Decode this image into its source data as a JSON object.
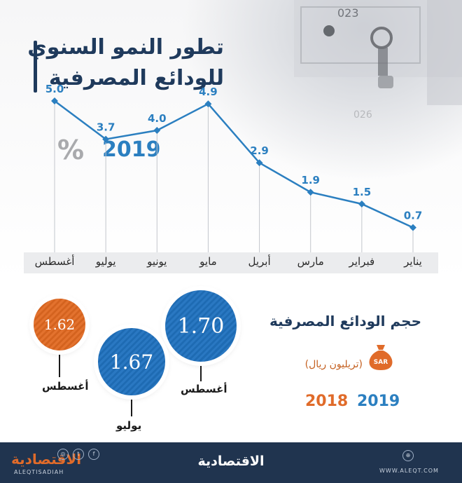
{
  "title_line1": "تطور النمو السنوي",
  "title_line2": "للودائع المصرفية",
  "percent_sign": "%",
  "year": "2019",
  "chart_data": {
    "type": "line",
    "x": [
      "يناير",
      "فبراير",
      "مارس",
      "أبريل",
      "مايو",
      "يونيو",
      "يوليو",
      "أغسطس"
    ],
    "series": [
      {
        "values": [
          0.7,
          1.5,
          1.9,
          2.9,
          4.9,
          4.0,
          3.7,
          5.0
        ]
      }
    ],
    "data_labels": [
      "0.7",
      "1.5",
      "1.9",
      "2.9",
      "4.9",
      "4.0",
      "3.7",
      "5.0"
    ],
    "ylim": [
      0,
      5.0
    ],
    "grid": false,
    "legend": "none"
  },
  "deposits": {
    "title": "حجم الودائع المصرفية",
    "unit": "(تريليون ريال)",
    "currency_icon": "money-bag-icon",
    "currency_text": "SAR",
    "legend_2019": "2019",
    "legend_2018": "2018",
    "bubbles": [
      {
        "value": "1.70",
        "label": "أغسطس",
        "year": "2019"
      },
      {
        "value": "1.67",
        "label": "يوليو",
        "year": "2019"
      },
      {
        "value": "1.62",
        "label": "أغسطس",
        "year": "2018"
      }
    ]
  },
  "colors": {
    "navy": "#1f3a5c",
    "blue": "#2b7fc0",
    "orange": "#e06b2a",
    "footer": "#20344f"
  },
  "footer": {
    "logo": "الاقتصادية",
    "logo_latin": "ALEQTISADIAH",
    "url": "WWW.ALEQT.COM"
  }
}
